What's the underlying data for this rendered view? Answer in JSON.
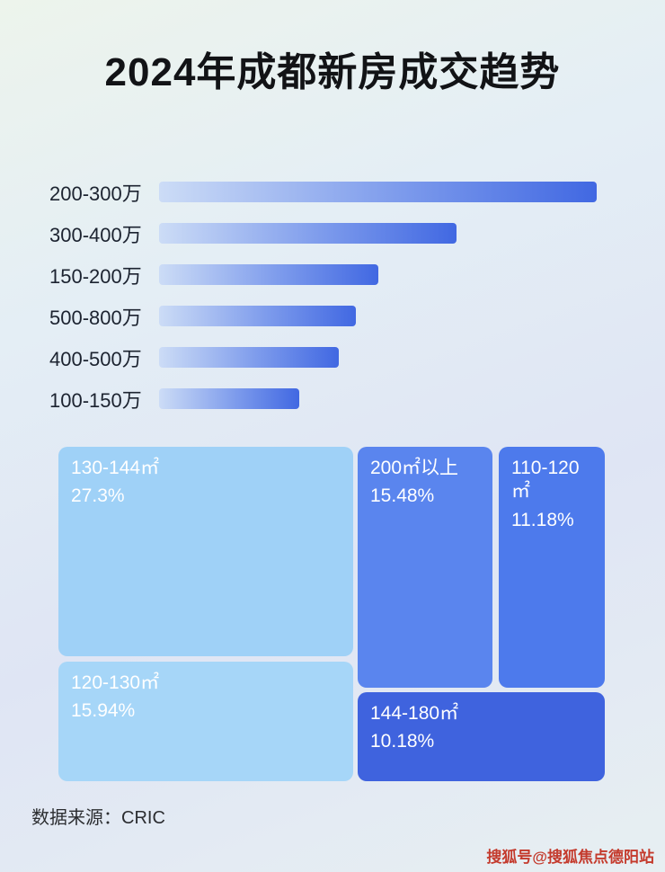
{
  "page": {
    "title": "2024年成都新房成交趋势",
    "source_label": "数据来源：CRIC",
    "watermark": "搜狐号@搜狐焦点德阳站"
  },
  "colors": {
    "bar_gradient_start": "#ccdcf6",
    "bar_gradient_end": "#4168e2",
    "title_color": "#121316",
    "watermark_color": "#c43a2c"
  },
  "chart_data": [
    {
      "type": "bar",
      "orientation": "horizontal",
      "title": "2024年成都新房成交趋势",
      "categories": [
        "200-300万",
        "300-400万",
        "150-200万",
        "500-800万",
        "400-500万",
        "100-150万"
      ],
      "values_relative_pct": [
        100,
        68,
        50,
        45,
        41,
        32
      ],
      "note": "no numeric axis shown; bar lengths measured relative to longest bar = 100",
      "grid": false,
      "legend": false
    },
    {
      "type": "treemap",
      "items": [
        {
          "label": "130-144㎡",
          "value_pct": "27.3%",
          "value": 27.3,
          "color": "#9fd1f7"
        },
        {
          "label": "120-130㎡",
          "value_pct": "15.94%",
          "value": 15.94,
          "color": "#a6d6f8"
        },
        {
          "label": "200㎡以上",
          "value_pct": "15.48%",
          "value": 15.48,
          "color": "#5a85ee"
        },
        {
          "label": "110-120㎡",
          "value_pct": "11.18%",
          "value": 11.18,
          "color": "#4d7aec"
        },
        {
          "label": "144-180㎡",
          "value_pct": "10.18%",
          "value": 10.18,
          "color": "#3f63de"
        }
      ]
    }
  ]
}
